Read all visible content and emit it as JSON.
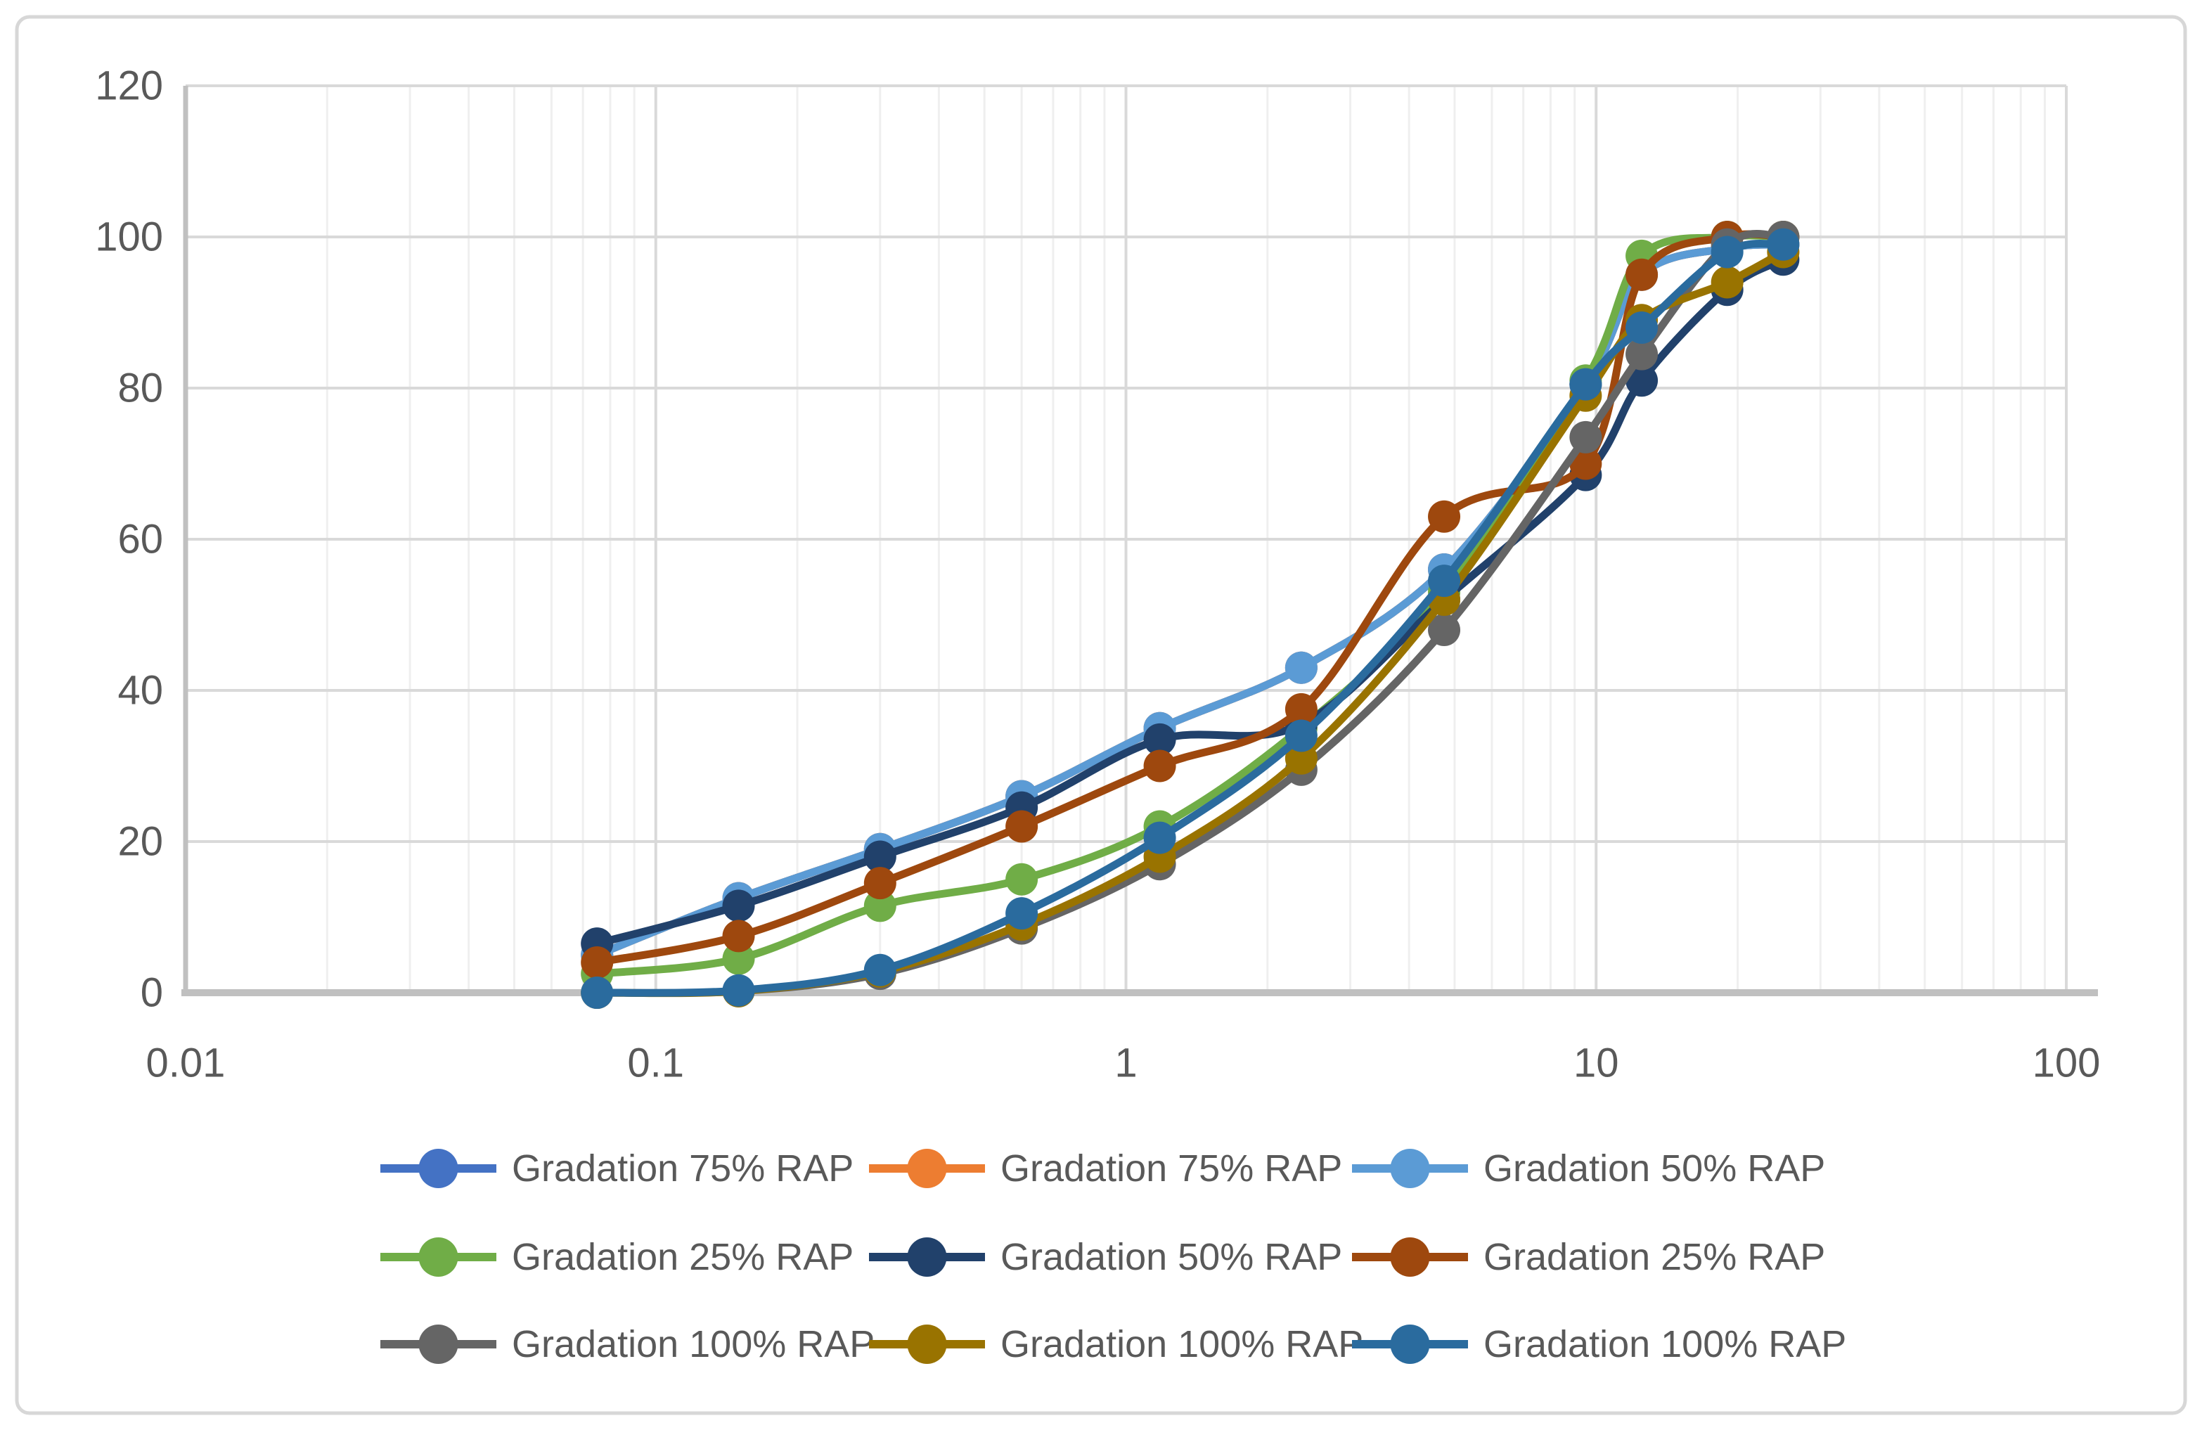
{
  "chart_data": {
    "type": "line",
    "title": "",
    "xlabel": "",
    "ylabel": "",
    "x_axis": {
      "scale": "log",
      "min": 0.01,
      "max": 100,
      "tick_labels": [
        "0.01",
        "0.1",
        "1",
        "10",
        "100"
      ],
      "tick_values": [
        0.01,
        0.1,
        1,
        10,
        100
      ],
      "minor_grid": true
    },
    "y_axis": {
      "min": 0,
      "max": 120,
      "tick_values": [
        0,
        20,
        40,
        60,
        80,
        100,
        120
      ],
      "tick_labels": [
        "0",
        "20",
        "40",
        "60",
        "80",
        "100",
        "120"
      ]
    },
    "grid": {
      "major_color": "#d9d9d9",
      "minor_color": "#efefef",
      "axis_color": "#c0c0c0"
    },
    "x": [
      0.075,
      0.15,
      0.3,
      0.6,
      1.18,
      2.36,
      4.75,
      9.5,
      12.5,
      19,
      25
    ],
    "series": [
      {
        "name": "Gradation 75% RAP",
        "color": "#4472C4",
        "values": [
          5,
          12.5,
          19,
          26,
          35,
          43,
          56,
          80.5,
          95,
          98.5,
          99
        ]
      },
      {
        "name": "Gradation 75% RAP",
        "color": "#ED7D31",
        "values": [
          5,
          12.5,
          19,
          26,
          35,
          43,
          56,
          80.5,
          95,
          98.5,
          99
        ]
      },
      {
        "name": "Gradation 50% RAP",
        "color": "#5B9BD5",
        "values": [
          5,
          12.5,
          19,
          26,
          35,
          43,
          56,
          80.5,
          95,
          98.5,
          99
        ]
      },
      {
        "name": "Gradation 25% RAP",
        "color": "#70AD47",
        "values": [
          2.5,
          4.5,
          11.5,
          15,
          22,
          35,
          53,
          81,
          97.5,
          100,
          100
        ]
      },
      {
        "name": "Gradation 50% RAP",
        "color": "#21416B",
        "values": [
          6.5,
          11.5,
          18,
          24.5,
          33.5,
          35.5,
          52,
          68.5,
          81,
          93,
          97
        ]
      },
      {
        "name": "Gradation 25% RAP",
        "color": "#9E480E",
        "values": [
          4,
          7.5,
          14.5,
          22,
          30,
          37.5,
          63,
          70,
          95,
          100,
          100
        ]
      },
      {
        "name": "Gradation 100% RAP",
        "color": "#656565",
        "values": [
          0,
          0.2,
          2.5,
          8.5,
          17,
          29.5,
          48,
          73.5,
          84.5,
          99,
          100
        ]
      },
      {
        "name": "Gradation 100% RAP",
        "color": "#997300",
        "values": [
          0,
          0.2,
          2.8,
          9,
          18,
          31,
          52,
          79,
          89,
          94,
          98
        ]
      },
      {
        "name": "Gradation 100% RAP",
        "color": "#2A6B9E",
        "values": [
          0,
          0.3,
          3,
          10.5,
          20.5,
          34,
          54.5,
          80.5,
          88,
          98,
          99
        ]
      }
    ],
    "legend": {
      "position": "bottom",
      "columns": 3,
      "rows": 3
    },
    "style": {
      "line_width": 11,
      "marker_radius": 23,
      "smooth": true,
      "text_color": "#595959",
      "border_color": "#d7d7d7"
    }
  }
}
